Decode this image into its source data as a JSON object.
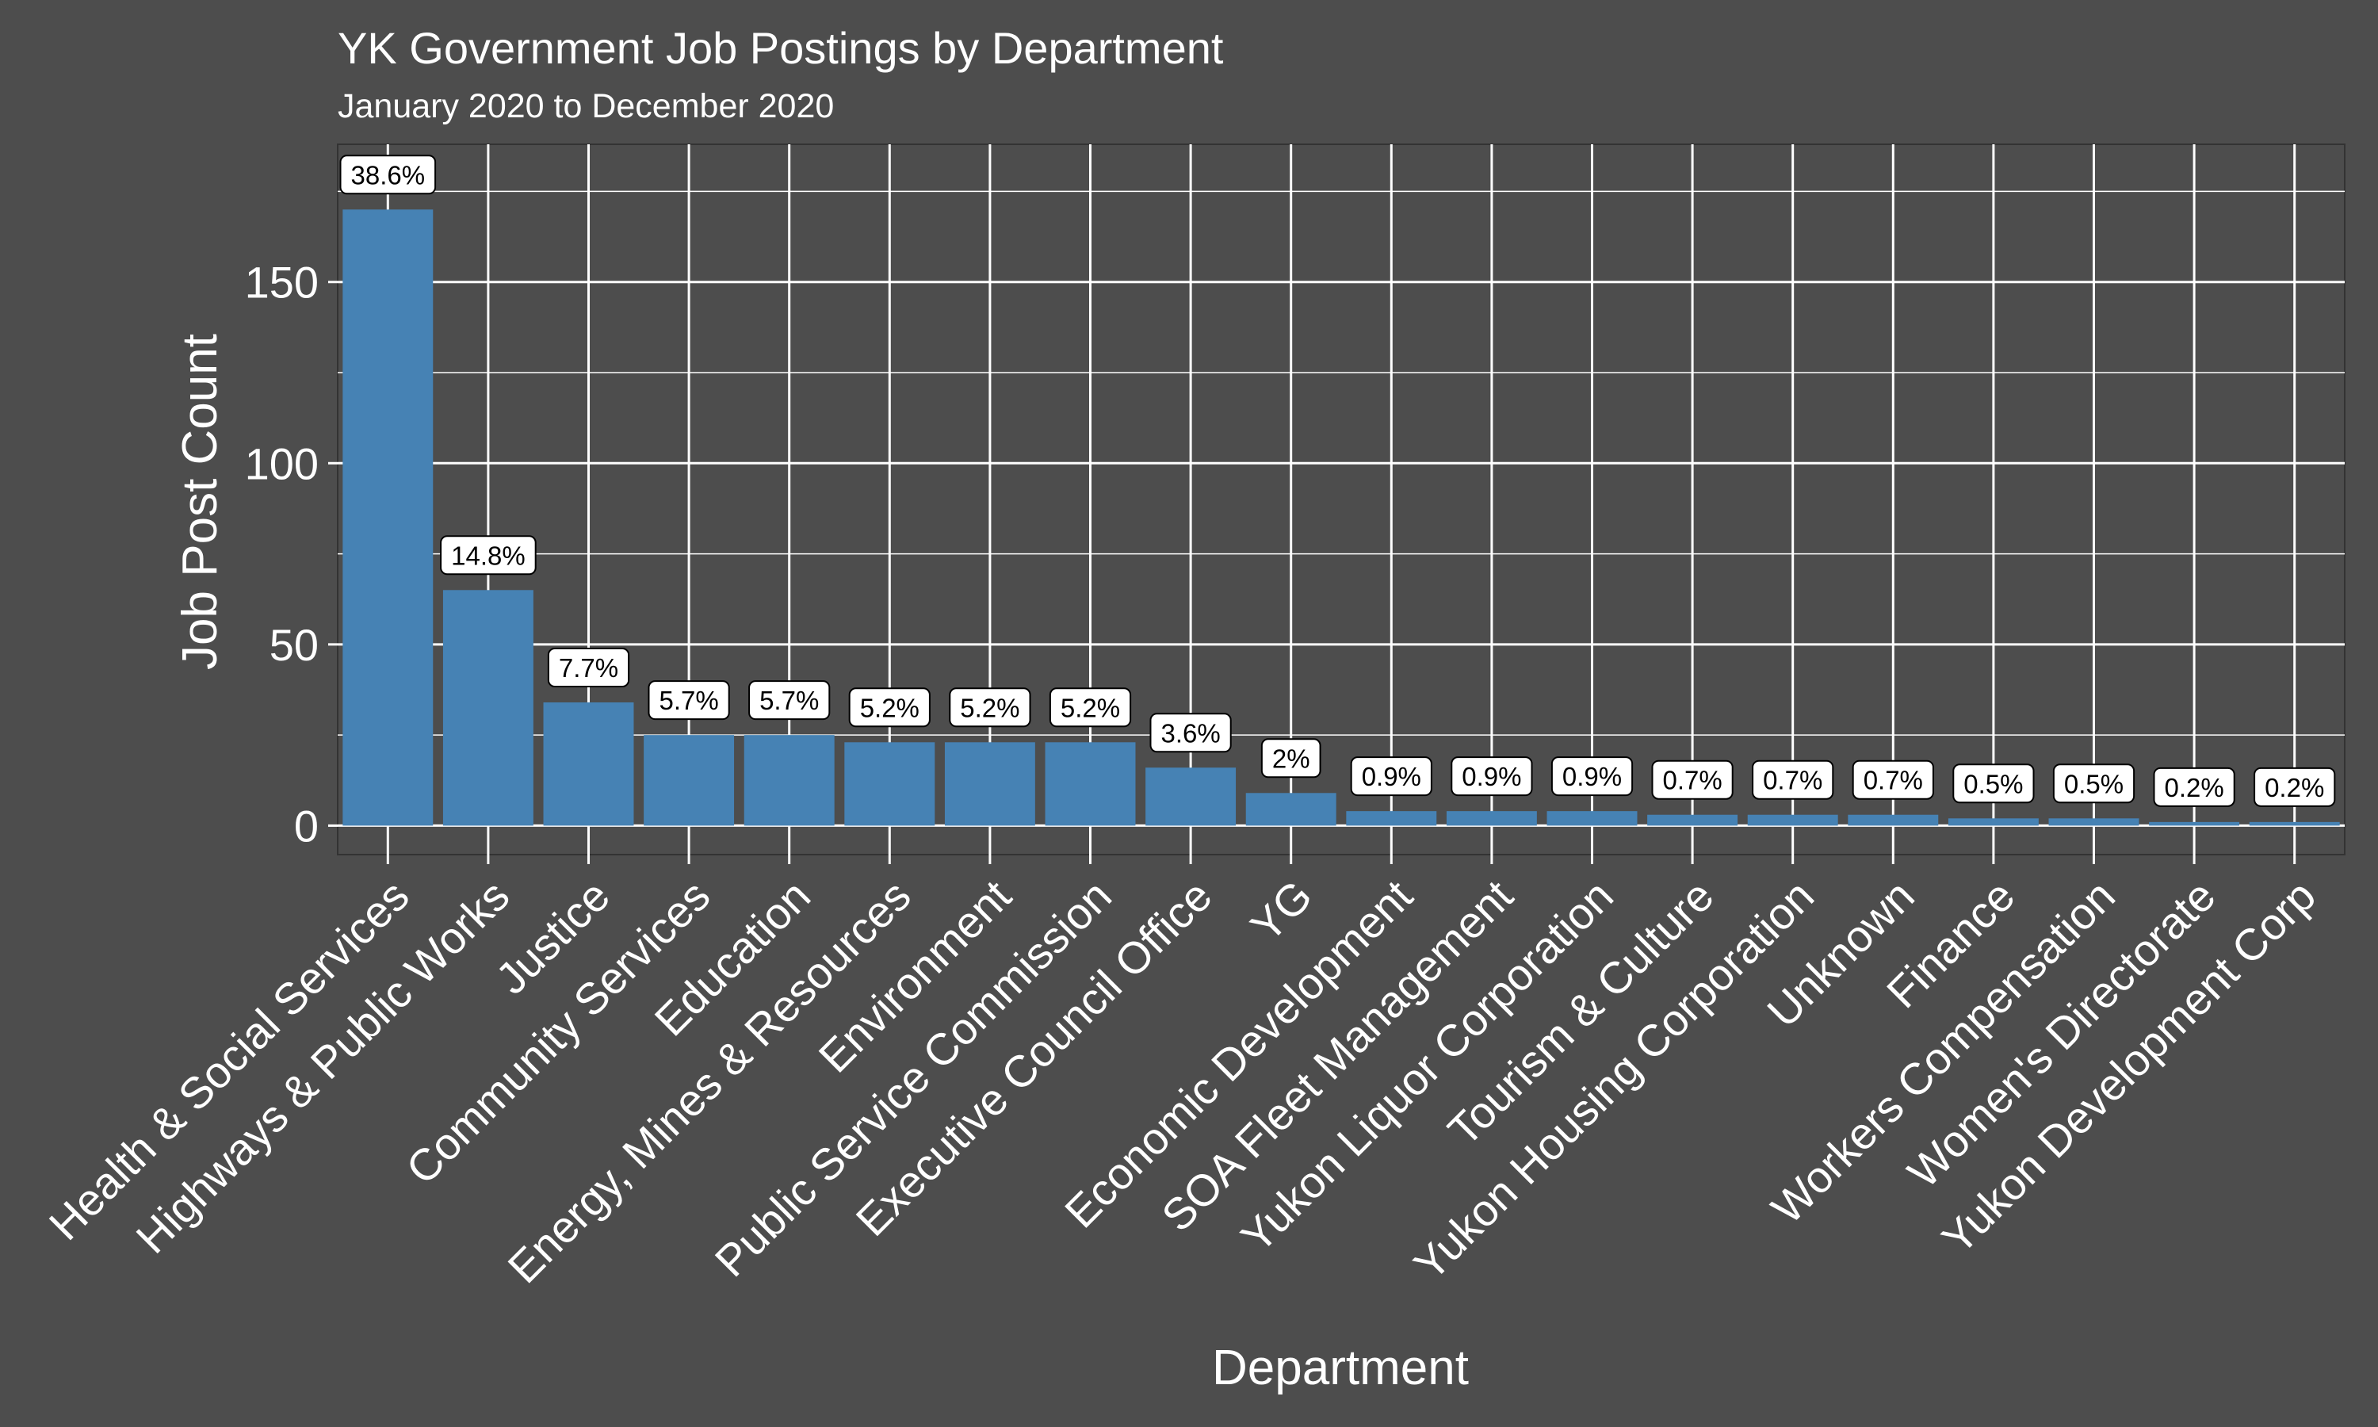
{
  "chart_data": {
    "type": "bar",
    "title": "YK Government Job Postings by Department",
    "subtitle": "January 2020 to December 2020",
    "xlabel": "Department",
    "ylabel": "Job Post Count",
    "ylim": [
      -8,
      188
    ],
    "yticks": [
      "0",
      "50",
      "100",
      "150"
    ],
    "ytick_values": [
      0,
      50,
      100,
      150
    ],
    "grid": true,
    "categories": [
      "Health & Social Services",
      "Highways & Public Works",
      "Justice",
      "Community Services",
      "Education",
      "Energy, Mines & Resources",
      "Environment",
      "Public Service Commission",
      "Executive Council Office",
      "YG",
      "Economic Development",
      "SOA Fleet Management",
      "Yukon Liquor Corporation",
      "Tourism & Culture",
      "Yukon Housing Corporation",
      "Unknown",
      "Finance",
      "Workers Compensation",
      "Women's Directorate",
      "Yukon Development Corp"
    ],
    "values": [
      170,
      65,
      34,
      25,
      25,
      23,
      23,
      23,
      16,
      9,
      4,
      4,
      4,
      3,
      3,
      3,
      2,
      2,
      1,
      1
    ],
    "labels": [
      "38.6%",
      "14.8%",
      "7.7%",
      "5.7%",
      "5.7%",
      "5.2%",
      "5.2%",
      "5.2%",
      "3.6%",
      "2%",
      "0.9%",
      "0.9%",
      "0.9%",
      "0.7%",
      "0.7%",
      "0.7%",
      "0.5%",
      "0.5%",
      "0.2%",
      "0.2%"
    ],
    "colors": {
      "bar": "#4682b4",
      "panel": "#4d4d4d",
      "grid": "#ffffff",
      "text": "#ffffff",
      "label_box": "#ffffff"
    }
  }
}
